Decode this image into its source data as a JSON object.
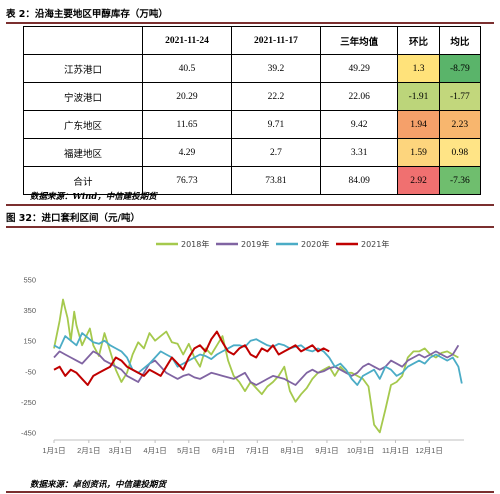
{
  "table_section": {
    "caption": "表 2：沿海主要地区甲醇库存（万吨）",
    "source": "数据来源：Wind，中信建投期货",
    "headers": [
      "",
      "2021-11-24",
      "2021-11-17",
      "三年均值",
      "环比",
      "均比"
    ],
    "rows": [
      {
        "region": "江苏港口",
        "v1": "40.5",
        "v2": "39.2",
        "avg": "49.29",
        "hb": "1.3",
        "jb": "-8.79",
        "hb_color": "#ffe27a",
        "jb_color": "#5ab46a"
      },
      {
        "region": "宁波港口",
        "v1": "20.29",
        "v2": "22.2",
        "avg": "22.06",
        "hb": "-1.91",
        "jb": "-1.77",
        "hb_color": "#bcd57a",
        "jb_color": "#c2d77c"
      },
      {
        "region": "广东地区",
        "v1": "11.65",
        "v2": "9.71",
        "avg": "9.42",
        "hb": "1.94",
        "jb": "2.23",
        "hb_color": "#f5a06a",
        "jb_color": "#f8b66e"
      },
      {
        "region": "福建地区",
        "v1": "4.29",
        "v2": "2.7",
        "avg": "3.31",
        "hb": "1.59",
        "jb": "0.98",
        "hb_color": "#fdd57d",
        "jb_color": "#ffe486"
      },
      {
        "region": "合计",
        "v1": "76.73",
        "v2": "73.81",
        "avg": "84.09",
        "hb": "2.92",
        "jb": "-7.36",
        "hb_color": "#f07070",
        "jb_color": "#6fbe6e"
      }
    ]
  },
  "chart_section": {
    "caption": "图 32：进口套利区间（元/吨）",
    "source": "数据来源：卓创资讯，中信建投期货"
  },
  "chart_data": {
    "type": "line",
    "title": "",
    "xlabel": "",
    "ylabel": "",
    "x_ticks": [
      "1月1日",
      "2月1日",
      "3月1日",
      "4月1日",
      "5月1日",
      "6月1日",
      "7月1日",
      "8月1日",
      "9月1日",
      "10月1日",
      "11月1日",
      "12月1日"
    ],
    "y_ticks": [
      550,
      350,
      150,
      -50,
      -250,
      -450
    ],
    "ylim": [
      -500,
      600
    ],
    "xlim_days": [
      0,
      365
    ],
    "grid": false,
    "legend_position": "top",
    "series": [
      {
        "name": "2018年",
        "color": "#a5c94d",
        "x": [
          0,
          5,
          8,
          10,
          12,
          15,
          18,
          20,
          25,
          30,
          32,
          35,
          40,
          45,
          50,
          55,
          60,
          65,
          70,
          75,
          80,
          85,
          90,
          95,
          100,
          105,
          110,
          115,
          120,
          125,
          130,
          135,
          140,
          145,
          150,
          155,
          160,
          165,
          170,
          175,
          180,
          185,
          190,
          195,
          200,
          205,
          210,
          215,
          220,
          225,
          230,
          235,
          240,
          245,
          250,
          255,
          260,
          265,
          270,
          275,
          280,
          285,
          290,
          295,
          300,
          305,
          310,
          315,
          320,
          325,
          330,
          335,
          340,
          345,
          350,
          355,
          360
        ],
        "y": [
          100,
          280,
          420,
          360,
          300,
          150,
          340,
          250,
          120,
          200,
          230,
          120,
          50,
          200,
          80,
          -40,
          -120,
          -60,
          60,
          140,
          100,
          200,
          150,
          180,
          210,
          140,
          130,
          60,
          130,
          40,
          -20,
          100,
          60,
          120,
          180,
          20,
          -80,
          -120,
          -180,
          -120,
          -160,
          -200,
          -150,
          -120,
          -80,
          -20,
          -180,
          -250,
          -200,
          -160,
          -100,
          -60,
          -40,
          -20,
          -80,
          -20,
          -60,
          -60,
          -80,
          -100,
          -150,
          -400,
          -450,
          -300,
          -140,
          -120,
          -80,
          40,
          80,
          80,
          100,
          60,
          40,
          70,
          80,
          60,
          40
        ]
      },
      {
        "name": "2019年",
        "color": "#8064a2",
        "x": [
          0,
          5,
          10,
          15,
          20,
          25,
          30,
          35,
          40,
          45,
          50,
          55,
          60,
          65,
          70,
          75,
          80,
          85,
          90,
          95,
          100,
          105,
          110,
          115,
          120,
          125,
          130,
          135,
          140,
          145,
          150,
          155,
          160,
          165,
          170,
          175,
          180,
          185,
          190,
          195,
          200,
          205,
          210,
          215,
          220,
          225,
          230,
          235,
          240,
          245,
          250,
          255,
          260,
          265,
          270,
          275,
          280,
          285,
          290,
          295,
          300,
          305,
          310,
          315,
          320,
          325,
          330,
          335,
          340,
          345,
          350,
          355,
          360
        ],
        "y": [
          40,
          80,
          60,
          40,
          20,
          0,
          40,
          80,
          60,
          20,
          0,
          -20,
          -40,
          -80,
          -100,
          -120,
          -60,
          0,
          20,
          -20,
          -60,
          -80,
          -100,
          -80,
          -70,
          -90,
          -100,
          -80,
          -60,
          -70,
          -80,
          -90,
          -100,
          -80,
          -60,
          -120,
          -140,
          -120,
          -100,
          -80,
          -90,
          -100,
          -120,
          -140,
          -100,
          -60,
          -40,
          -60,
          -50,
          -30,
          -20,
          -40,
          -60,
          -80,
          -60,
          -20,
          0,
          -20,
          -40,
          -20,
          20,
          0,
          -20,
          20,
          40,
          60,
          40,
          60,
          80,
          60,
          40,
          60,
          120
        ]
      },
      {
        "name": "2020年",
        "color": "#4bacc6",
        "x": [
          0,
          5,
          10,
          15,
          20,
          25,
          30,
          35,
          40,
          45,
          50,
          55,
          60,
          65,
          70,
          75,
          80,
          85,
          90,
          95,
          100,
          105,
          110,
          115,
          120,
          125,
          130,
          135,
          140,
          145,
          150,
          155,
          160,
          165,
          170,
          175,
          180,
          185,
          190,
          195,
          200,
          205,
          210,
          215,
          220,
          225,
          230,
          235,
          240,
          245,
          250,
          255,
          260,
          265,
          270,
          275,
          280,
          285,
          290,
          295,
          300,
          305,
          310,
          315,
          320,
          325,
          330,
          335,
          340,
          345,
          350,
          355,
          360,
          363
        ],
        "y": [
          120,
          100,
          180,
          150,
          120,
          200,
          170,
          140,
          130,
          150,
          120,
          100,
          80,
          40,
          -40,
          -60,
          -30,
          0,
          40,
          80,
          60,
          40,
          -20,
          0,
          20,
          40,
          60,
          50,
          30,
          60,
          80,
          100,
          120,
          120,
          110,
          150,
          160,
          140,
          120,
          110,
          130,
          120,
          100,
          110,
          120,
          90,
          80,
          100,
          80,
          40,
          -20,
          0,
          -40,
          -100,
          -140,
          -80,
          -60,
          -40,
          -100,
          -20,
          -40,
          -80,
          -60,
          -20,
          0,
          20,
          0,
          40,
          60,
          40,
          20,
          40,
          -20,
          -130
        ]
      },
      {
        "name": "2021年",
        "color": "#c00000",
        "x": [
          0,
          5,
          10,
          15,
          20,
          25,
          30,
          35,
          40,
          45,
          50,
          55,
          60,
          65,
          70,
          75,
          80,
          85,
          90,
          95,
          100,
          105,
          110,
          115,
          120,
          125,
          130,
          135,
          140,
          145,
          150,
          155,
          160,
          165,
          170,
          175,
          180,
          185,
          190,
          195,
          200,
          205,
          210,
          215,
          220,
          225,
          230,
          235,
          240,
          245
        ],
        "y": [
          -40,
          -20,
          -80,
          -40,
          -60,
          -100,
          -140,
          -80,
          -60,
          -40,
          -20,
          40,
          20,
          -20,
          -40,
          -60,
          -80,
          -40,
          -60,
          -80,
          -20,
          40,
          0,
          -40,
          40,
          100,
          120,
          80,
          160,
          210,
          140,
          80,
          60,
          100,
          120,
          60,
          40,
          100,
          80,
          120,
          60,
          80,
          100,
          120,
          80,
          100,
          120,
          80,
          100,
          80
        ]
      }
    ]
  }
}
